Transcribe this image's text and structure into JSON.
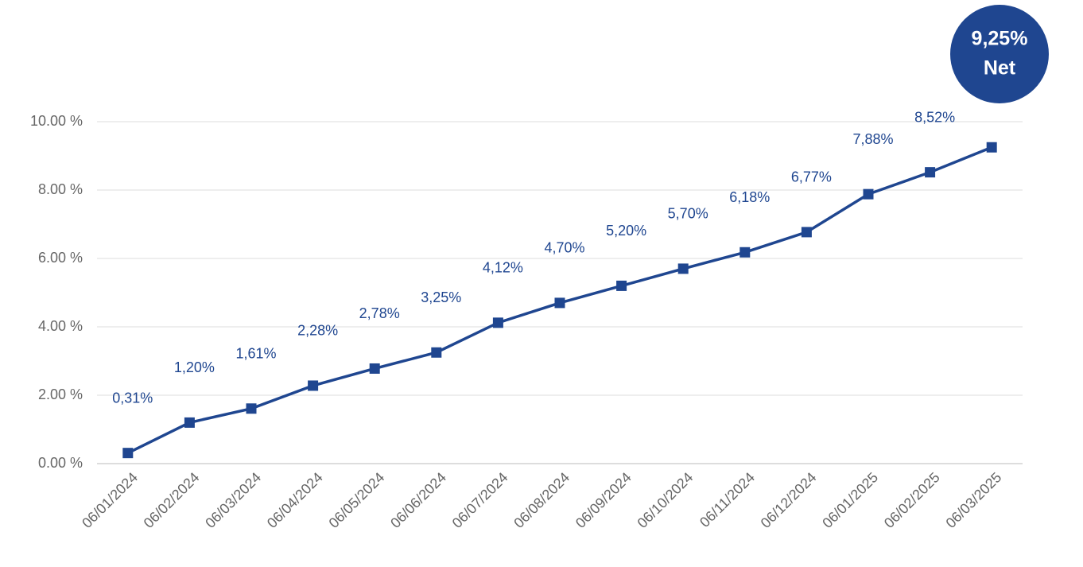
{
  "chart_data": {
    "type": "line",
    "categories": [
      "06/01/2024",
      "06/02/2024",
      "06/03/2024",
      "06/04/2024",
      "06/05/2024",
      "06/06/2024",
      "06/07/2024",
      "06/08/2024",
      "06/09/2024",
      "06/10/2024",
      "06/11/2024",
      "06/12/2024",
      "06/01/2025",
      "06/02/2025",
      "06/03/2025"
    ],
    "series": [
      {
        "color": "#1f4690",
        "values": [
          0.31,
          1.2,
          1.61,
          2.28,
          2.78,
          3.25,
          4.12,
          4.7,
          5.2,
          5.7,
          6.18,
          6.77,
          7.88,
          8.52,
          9.25
        ],
        "value_labels": [
          "0,31%",
          "1,20%",
          "1,61%",
          "2,28%",
          "2,78%",
          "3,25%",
          "4,12%",
          "4,70%",
          "5,20%",
          "5,70%",
          "6,18%",
          "6,77%",
          "7,88%",
          "8,52%",
          null
        ]
      }
    ],
    "ylim": [
      0,
      10
    ],
    "yticks": [
      {
        "value": 0,
        "label": "0.00 %"
      },
      {
        "value": 2,
        "label": "2.00 %"
      },
      {
        "value": 4,
        "label": "4.00 %"
      },
      {
        "value": 6,
        "label": "6.00 %"
      },
      {
        "value": 8,
        "label": "8.00 %"
      },
      {
        "value": 10,
        "label": "10.00 %"
      }
    ],
    "grid": true,
    "annotations": [
      "9,25%",
      "Net"
    ]
  }
}
